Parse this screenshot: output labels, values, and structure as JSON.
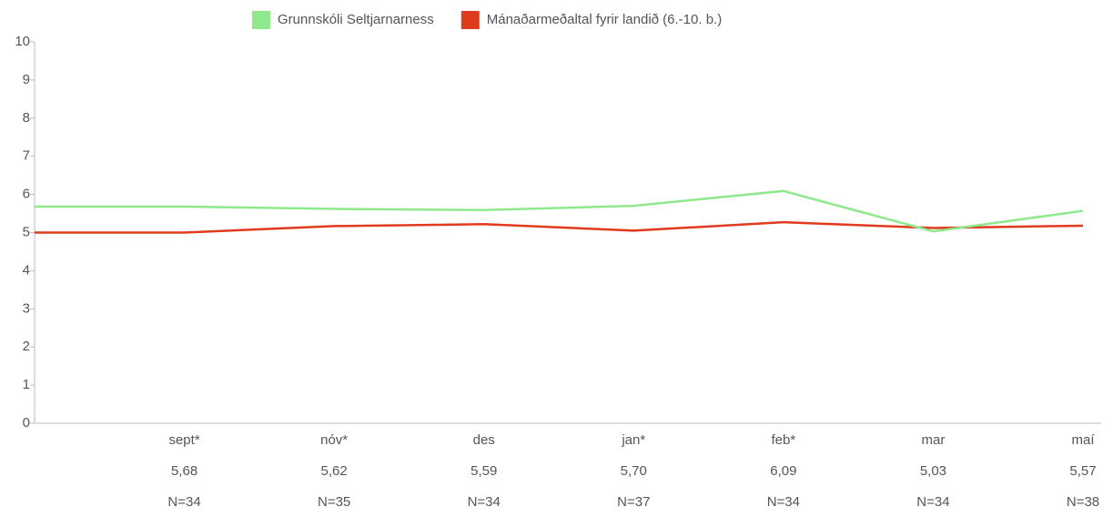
{
  "chart_data": {
    "type": "line",
    "categories": [
      null,
      "sept*",
      "nóv*",
      "des",
      "jan*",
      "feb*",
      "mar",
      "maí"
    ],
    "series": [
      {
        "name": "Grunnskóli Seltjarnarness",
        "color": "#8fe88b",
        "values": [
          5.68,
          5.68,
          5.62,
          5.59,
          5.7,
          6.09,
          5.03,
          5.57
        ],
        "value_labels": [
          null,
          "5,68",
          "5,62",
          "5,59",
          "5,70",
          "6,09",
          "5,03",
          "5,57"
        ]
      },
      {
        "name": "Mánaðarmeðaltal fyrir landið (6.-10. b.)",
        "color": "#e03a1f",
        "values": [
          5.0,
          5.0,
          5.17,
          5.22,
          5.05,
          5.27,
          5.12,
          5.18
        ]
      }
    ],
    "sample_sizes": [
      null,
      "N=34",
      "N=35",
      "N=34",
      "N=37",
      "N=34",
      "N=34",
      "N=38"
    ],
    "ylim": [
      0,
      10
    ],
    "yticks": [
      0,
      1,
      2,
      3,
      4,
      5,
      6,
      7,
      8,
      9,
      10
    ],
    "legend": "top"
  }
}
